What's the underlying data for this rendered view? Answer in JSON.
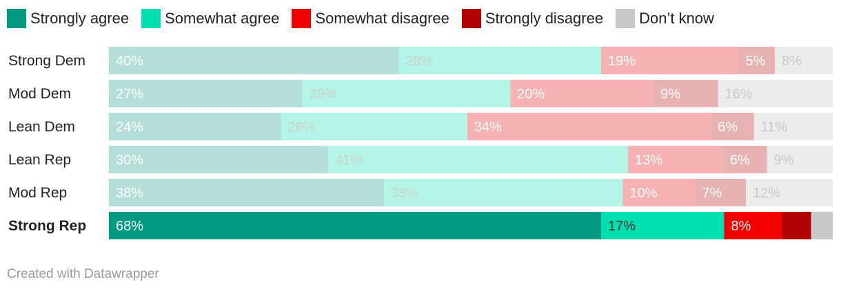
{
  "chart_data": {
    "type": "bar",
    "orientation": "horizontal",
    "stacked": true,
    "normalized_100": true,
    "title": "",
    "categories": [
      "Strong Dem",
      "Mod Dem",
      "Lean Dem",
      "Lean Rep",
      "Mod Rep",
      "Strong Rep"
    ],
    "highlighted_category": "Strong Rep",
    "series": [
      {
        "name": "Strongly agree",
        "color": "#009982",
        "faded_color": "#b3dfd8",
        "values": [
          40,
          27,
          24,
          30,
          38,
          68
        ],
        "labels": [
          "40%",
          "27%",
          "24%",
          "30%",
          "38%",
          "68%"
        ]
      },
      {
        "name": "Somewhat agree",
        "color": "#00e0ae",
        "faded_color": "#b3f5e6",
        "values": [
          28,
          29,
          26,
          41,
          33,
          17
        ],
        "labels": [
          "28%",
          "29%",
          "26%",
          "41%",
          "33%",
          "17%"
        ]
      },
      {
        "name": "Somewhat disagree",
        "color": "#f20000",
        "faded_color": "#f7b3b3",
        "values": [
          19,
          20,
          34,
          13,
          10,
          8
        ],
        "labels": [
          "19%",
          "20%",
          "34%",
          "13%",
          "10%",
          "8%"
        ]
      },
      {
        "name": "Strongly disagree",
        "color": "#b00000",
        "faded_color": "#e6b2b2",
        "values": [
          5,
          9,
          6,
          6,
          7,
          4
        ],
        "labels": [
          "5%",
          "9%",
          "6%",
          "6%",
          "7%",
          ""
        ]
      },
      {
        "name": "Don’t know",
        "color": "#c8c8c8",
        "faded_color": "#ececec",
        "values": [
          8,
          16,
          11,
          9,
          12,
          3
        ],
        "labels": [
          "8%",
          "16%",
          "11%",
          "9%",
          "12%",
          ""
        ]
      }
    ],
    "legend_position": "top",
    "xlim": [
      0,
      100
    ]
  },
  "footer": "Created with Datawrapper"
}
